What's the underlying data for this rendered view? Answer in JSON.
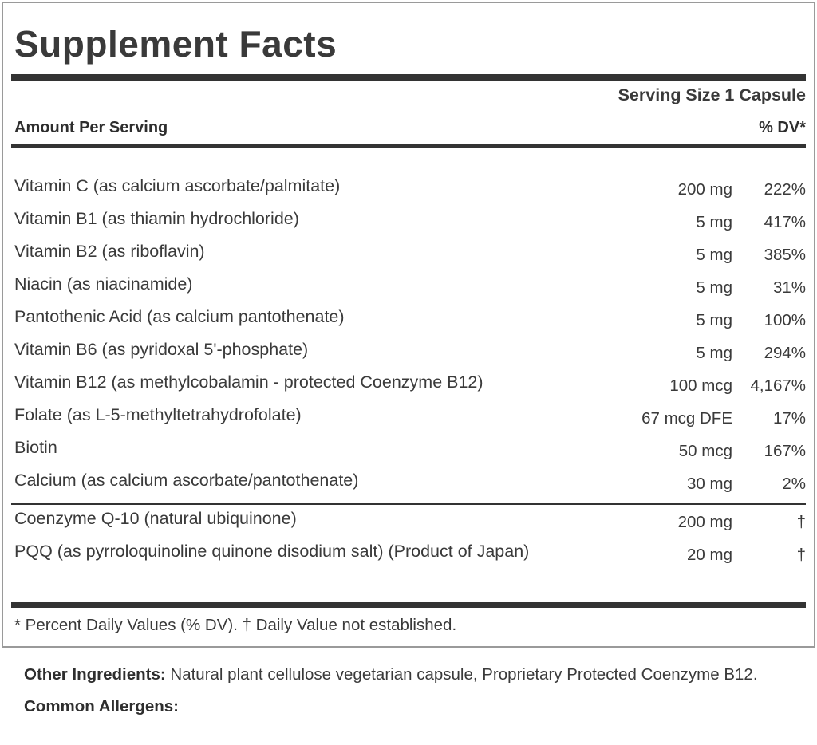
{
  "colors": {
    "bar": "#333333",
    "text": "#3a3a3a",
    "panel_border": "#9a9a9a"
  },
  "panel": {
    "title": "Supplement Facts",
    "serving_size": "Serving Size 1 Capsule",
    "amount_header": "Amount Per Serving",
    "dv_header": "% DV*",
    "rows": [
      {
        "name": "Vitamin C (as calcium ascorbate/palmitate)",
        "amount": "200 mg",
        "dv": "222%"
      },
      {
        "name": "Vitamin B1 (as thiamin hydrochloride)",
        "amount": "5 mg",
        "dv": "417%"
      },
      {
        "name": "Vitamin B2 (as riboflavin)",
        "amount": "5 mg",
        "dv": "385%"
      },
      {
        "name": "Niacin (as niacinamide)",
        "amount": "5 mg",
        "dv": "31%"
      },
      {
        "name": "Pantothenic Acid (as calcium pantothenate)",
        "amount": "5 mg",
        "dv": "100%"
      },
      {
        "name": "Vitamin B6 (as pyridoxal 5'-phosphate)",
        "amount": "5 mg",
        "dv": "294%"
      },
      {
        "name": "Vitamin B12 (as methylcobalamin - protected Coenzyme B12)",
        "amount": "100 mcg",
        "dv": "4,167%"
      },
      {
        "name": "Folate (as L-5-methyltetrahydrofolate)",
        "amount": "67 mcg DFE",
        "dv": "17%"
      },
      {
        "name": "Biotin",
        "amount": "50 mcg",
        "dv": "167%"
      },
      {
        "name": "Calcium (as calcium ascorbate/pantothenate)",
        "amount": "30 mg",
        "dv": "2%"
      }
    ],
    "rows_no_dv": [
      {
        "name": "Coenzyme Q-10 (natural ubiquinone)",
        "amount": "200 mg",
        "dv": "†"
      },
      {
        "name": "PQQ (as pyrroloquinoline quinone disodium salt) (Product of Japan)",
        "amount": "20 mg",
        "dv": "†"
      }
    ],
    "footnote": "* Percent Daily Values (% DV). † Daily Value not established."
  },
  "other_ingredients": {
    "label": "Other Ingredients:",
    "text": "Natural plant cellulose vegetarian capsule, Proprietary Protected Coenzyme B12."
  },
  "allergens": {
    "label": "Common Allergens:"
  }
}
